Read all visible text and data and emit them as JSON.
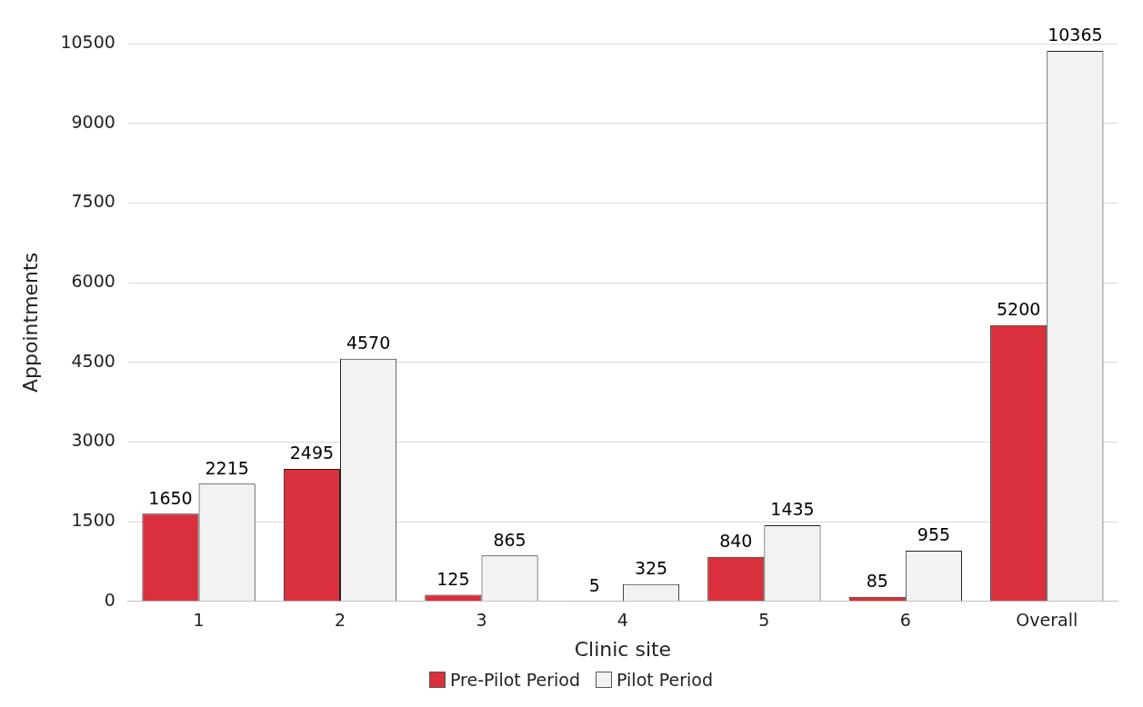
{
  "chart_data": {
    "type": "bar",
    "xlabel": "Clinic site",
    "ylabel": "Appointments",
    "categories": [
      "1",
      "2",
      "3",
      "4",
      "5",
      "6",
      "Overall"
    ],
    "series": [
      {
        "name": "Pre-Pilot Period",
        "color": "#d9303c",
        "values": [
          1650,
          2495,
          125,
          5,
          840,
          85,
          5200
        ]
      },
      {
        "name": "Pilot Period",
        "color": "#f2f2f2",
        "values": [
          2215,
          4570,
          865,
          325,
          1435,
          955,
          10365
        ]
      }
    ],
    "ylim": [
      0,
      10500
    ],
    "yticks": [
      0,
      1500,
      3000,
      4500,
      6000,
      7500,
      9000,
      10500
    ],
    "grid": "y",
    "legend": "bottom",
    "data_labels": true
  }
}
